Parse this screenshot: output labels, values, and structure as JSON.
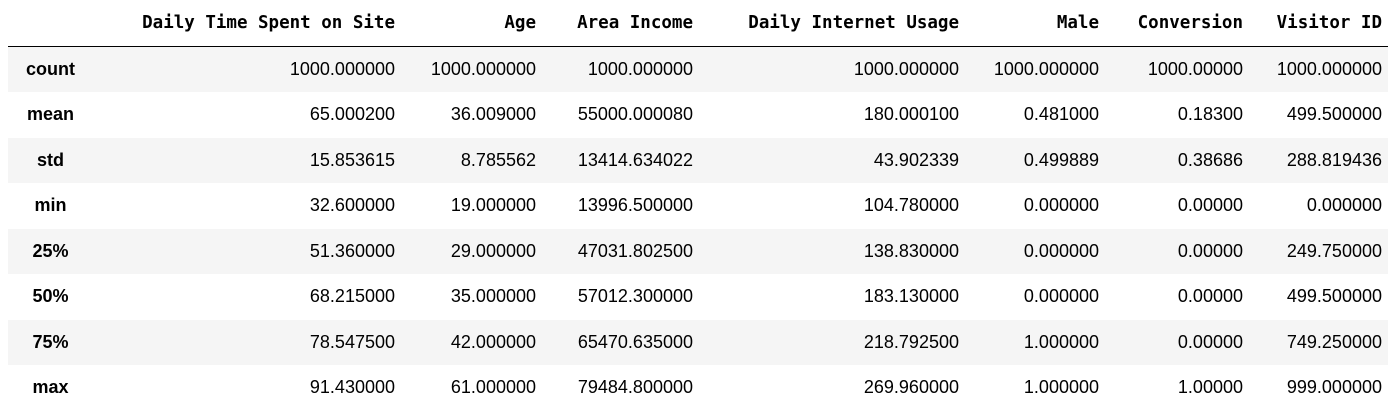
{
  "table": {
    "columns": [
      "Daily Time Spent on Site",
      "Age",
      "Area Income",
      "Daily Internet Usage",
      "Male",
      "Conversion",
      "Visitor ID"
    ],
    "rows": [
      {
        "label": "count",
        "values": [
          "1000.000000",
          "1000.000000",
          "1000.000000",
          "1000.000000",
          "1000.000000",
          "1000.00000",
          "1000.000000"
        ]
      },
      {
        "label": "mean",
        "values": [
          "65.000200",
          "36.009000",
          "55000.000080",
          "180.000100",
          "0.481000",
          "0.18300",
          "499.500000"
        ]
      },
      {
        "label": "std",
        "values": [
          "15.853615",
          "8.785562",
          "13414.634022",
          "43.902339",
          "0.499889",
          "0.38686",
          "288.819436"
        ]
      },
      {
        "label": "min",
        "values": [
          "32.600000",
          "19.000000",
          "13996.500000",
          "104.780000",
          "0.000000",
          "0.00000",
          "0.000000"
        ]
      },
      {
        "label": "25%",
        "values": [
          "51.360000",
          "29.000000",
          "47031.802500",
          "138.830000",
          "0.000000",
          "0.00000",
          "249.750000"
        ]
      },
      {
        "label": "50%",
        "values": [
          "68.215000",
          "35.000000",
          "57012.300000",
          "183.130000",
          "0.000000",
          "0.00000",
          "499.500000"
        ]
      },
      {
        "label": "75%",
        "values": [
          "78.547500",
          "42.000000",
          "65470.635000",
          "218.792500",
          "1.000000",
          "0.00000",
          "749.250000"
        ]
      },
      {
        "label": "max",
        "values": [
          "91.430000",
          "61.000000",
          "79484.800000",
          "269.960000",
          "1.000000",
          "1.00000",
          "999.000000"
        ]
      }
    ]
  }
}
